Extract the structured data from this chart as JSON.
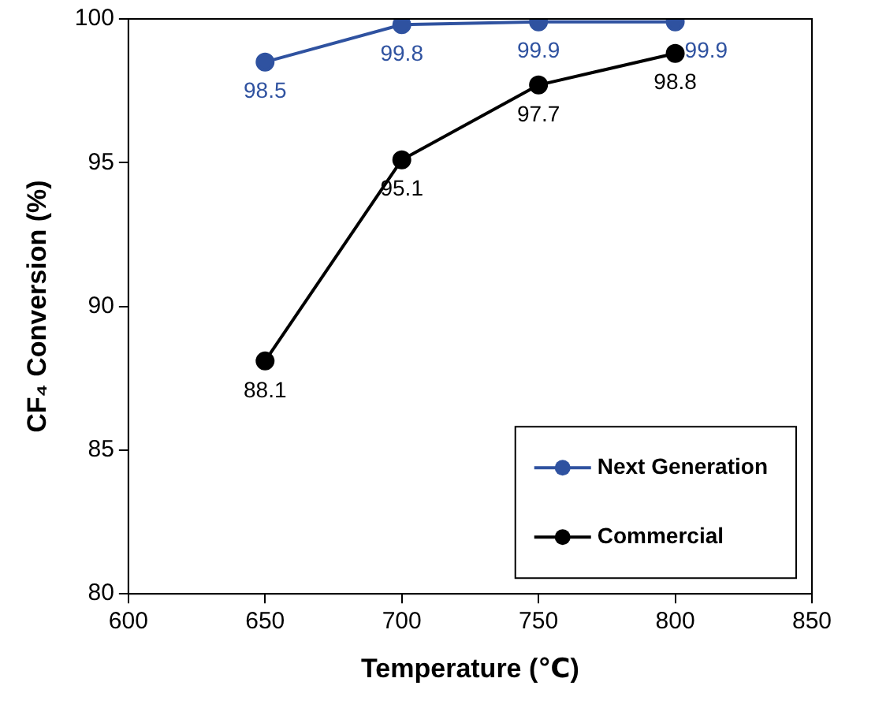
{
  "chart_data": {
    "type": "line",
    "xlabel": "Temperature (℃)",
    "ylabel": "CF₄ Conversion (%)",
    "x": [
      650,
      700,
      750,
      800
    ],
    "series": [
      {
        "name": "Next Generation",
        "color": "#2f52a0",
        "values": [
          98.5,
          99.8,
          99.9,
          99.9
        ]
      },
      {
        "name": "Commercial",
        "color": "#000000",
        "values": [
          88.1,
          95.1,
          97.7,
          98.8
        ]
      }
    ],
    "xlim": [
      600,
      850
    ],
    "xticks": [
      600,
      650,
      700,
      750,
      800,
      850
    ],
    "ylim": [
      80,
      100
    ],
    "yticks": [
      80,
      85,
      90,
      95,
      100
    ],
    "grid": false,
    "legend": "bottom right",
    "marker": "circle",
    "line_style": "solid",
    "data_labels": true
  }
}
